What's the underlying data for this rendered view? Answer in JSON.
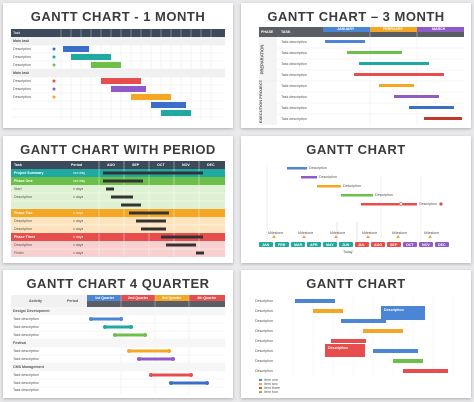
{
  "colors": {
    "teal": "#1fa9a0",
    "blue": "#3a6fc9",
    "red": "#e84d4d",
    "orange": "#f5a623",
    "green": "#6cc04a",
    "purple": "#8e5bc8",
    "yellow": "#f3d23c",
    "gray": "#5a5f66",
    "darkred": "#c0392b"
  },
  "cards": [
    {
      "title": "GANTT CHART - 1 MONTH",
      "section_labels": [
        "Task",
        "Main task",
        "Main task"
      ],
      "rows": [
        "Description",
        "Description",
        "Description",
        "Description",
        "Description",
        "Description"
      ]
    },
    {
      "title": "GANTT CHART – 3 MONTH",
      "header": {
        "phase": "PHASE",
        "task": "TASK",
        "months": [
          "JANUARY",
          "FEBRUARY",
          "MARCH"
        ]
      },
      "phases": [
        "PREPARATION",
        "EXECUTION PROJECT"
      ],
      "tasks": [
        "Task description",
        "Task description",
        "Task description",
        "Task description",
        "Task description",
        "Task description",
        "Task description",
        "Task description"
      ]
    },
    {
      "title": "GANTT CHART WITH PERIOD",
      "header": {
        "task": "Task",
        "period": "Period",
        "months": [
          "AUG",
          "SEP",
          "OCT",
          "NOV",
          "DEC"
        ]
      },
      "rows": [
        {
          "label": "Project Summary",
          "period": "xxx day"
        },
        {
          "label": "Phase One",
          "period": "xxx day"
        },
        {
          "label": "Start",
          "period": "x days"
        },
        {
          "label": "Description",
          "period": "x days"
        },
        {
          "label": "Phase Two",
          "period": "x days"
        },
        {
          "label": "Description",
          "period": "x days"
        },
        {
          "label": "Description",
          "period": "x days"
        },
        {
          "label": "Phase Three",
          "period": "x days"
        },
        {
          "label": "Description",
          "period": "x days"
        },
        {
          "label": "Finish",
          "period": "x days"
        }
      ]
    },
    {
      "title": "GANTT CHART",
      "months": [
        "JAN",
        "FEB",
        "MAR",
        "APR",
        "MAY",
        "JUN",
        "JUL",
        "AUG",
        "SEP",
        "OCT",
        "NOV",
        "DEC"
      ],
      "descriptions": [
        "Description",
        "Description",
        "Description",
        "Description",
        "Description"
      ],
      "milestone": "Milestone",
      "today": "Today"
    },
    {
      "title": "GANTT CHART 4 QUARTER",
      "header": {
        "activity": "Activity",
        "period": "Period",
        "quarters": [
          "1st Quarter",
          "2nd Quarter",
          "3rd Quarter",
          "4th Quarter"
        ]
      },
      "groups": [
        "Design/ Development",
        "Festival",
        "CMS Management"
      ],
      "rows": [
        "Task description",
        "Task description",
        "Task description",
        "Task description",
        "Task description",
        "Task description",
        "Task description",
        "Task description"
      ]
    },
    {
      "title": "GANTT CHART",
      "rows": [
        "Description",
        "Description",
        "Description",
        "Description",
        "Description",
        "Description",
        "Description",
        "Description"
      ],
      "callout": "Description",
      "legend": [
        "Item one",
        "Item two",
        "Item three",
        "Item four"
      ]
    }
  ]
}
